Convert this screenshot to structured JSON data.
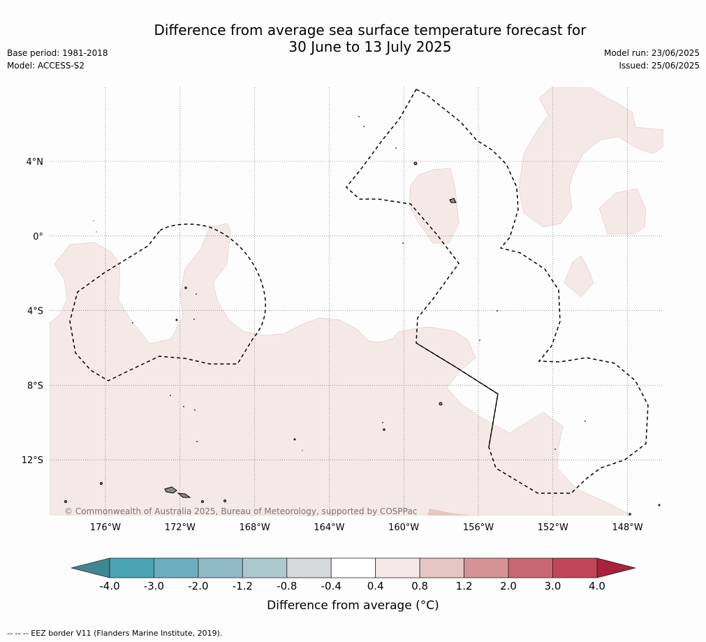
{
  "title_line1": "Difference from average sea surface temperature forecast for",
  "title_line2": "30 June to 13 July 2025",
  "base_period": "Base period: 1981-2018",
  "model": "Model: ACCESS-S2",
  "model_run": "Model run: 23/06/2025",
  "issued": "Issued: 25/06/2025",
  "copyright": "© Commonwealth of Australia 2025, Bureau of Meteorology, supported by COSPPac",
  "footer": "--  --  -- EEZ border V11 (Flanders Marine Institute, 2019).",
  "lon_labels": [
    "176°W",
    "172°W",
    "168°W",
    "164°W",
    "160°W",
    "156°W",
    "152°W",
    "148°W"
  ],
  "lat_labels": [
    "4°N",
    "0°",
    "4°S",
    "8°S",
    "12°S"
  ],
  "colorbar": {
    "label": "Difference from average (°C)",
    "ticks": [
      "-4.0",
      "-3.0",
      "-2.0",
      "-1.2",
      "-0.8",
      "-0.4",
      "0.4",
      "0.8",
      "1.2",
      "2.0",
      "3.0",
      "4.0"
    ],
    "colors": [
      "#3e8793",
      "#4aa3b2",
      "#6baebd",
      "#8fbac5",
      "#adc9ce",
      "#d5d8d9",
      "#ffffff",
      "#f5e9e8",
      "#e6c6c2",
      "#d59398",
      "#c96874",
      "#c04658",
      "#a8213d"
    ]
  },
  "map_colors": {
    "anomaly_0.4_0.8": "#f5e9e8",
    "anomaly_0.8_1.2": "#e6c6c2",
    "land": "#8a8a8a",
    "gridline": "#555555",
    "eez": "#000000"
  }
}
